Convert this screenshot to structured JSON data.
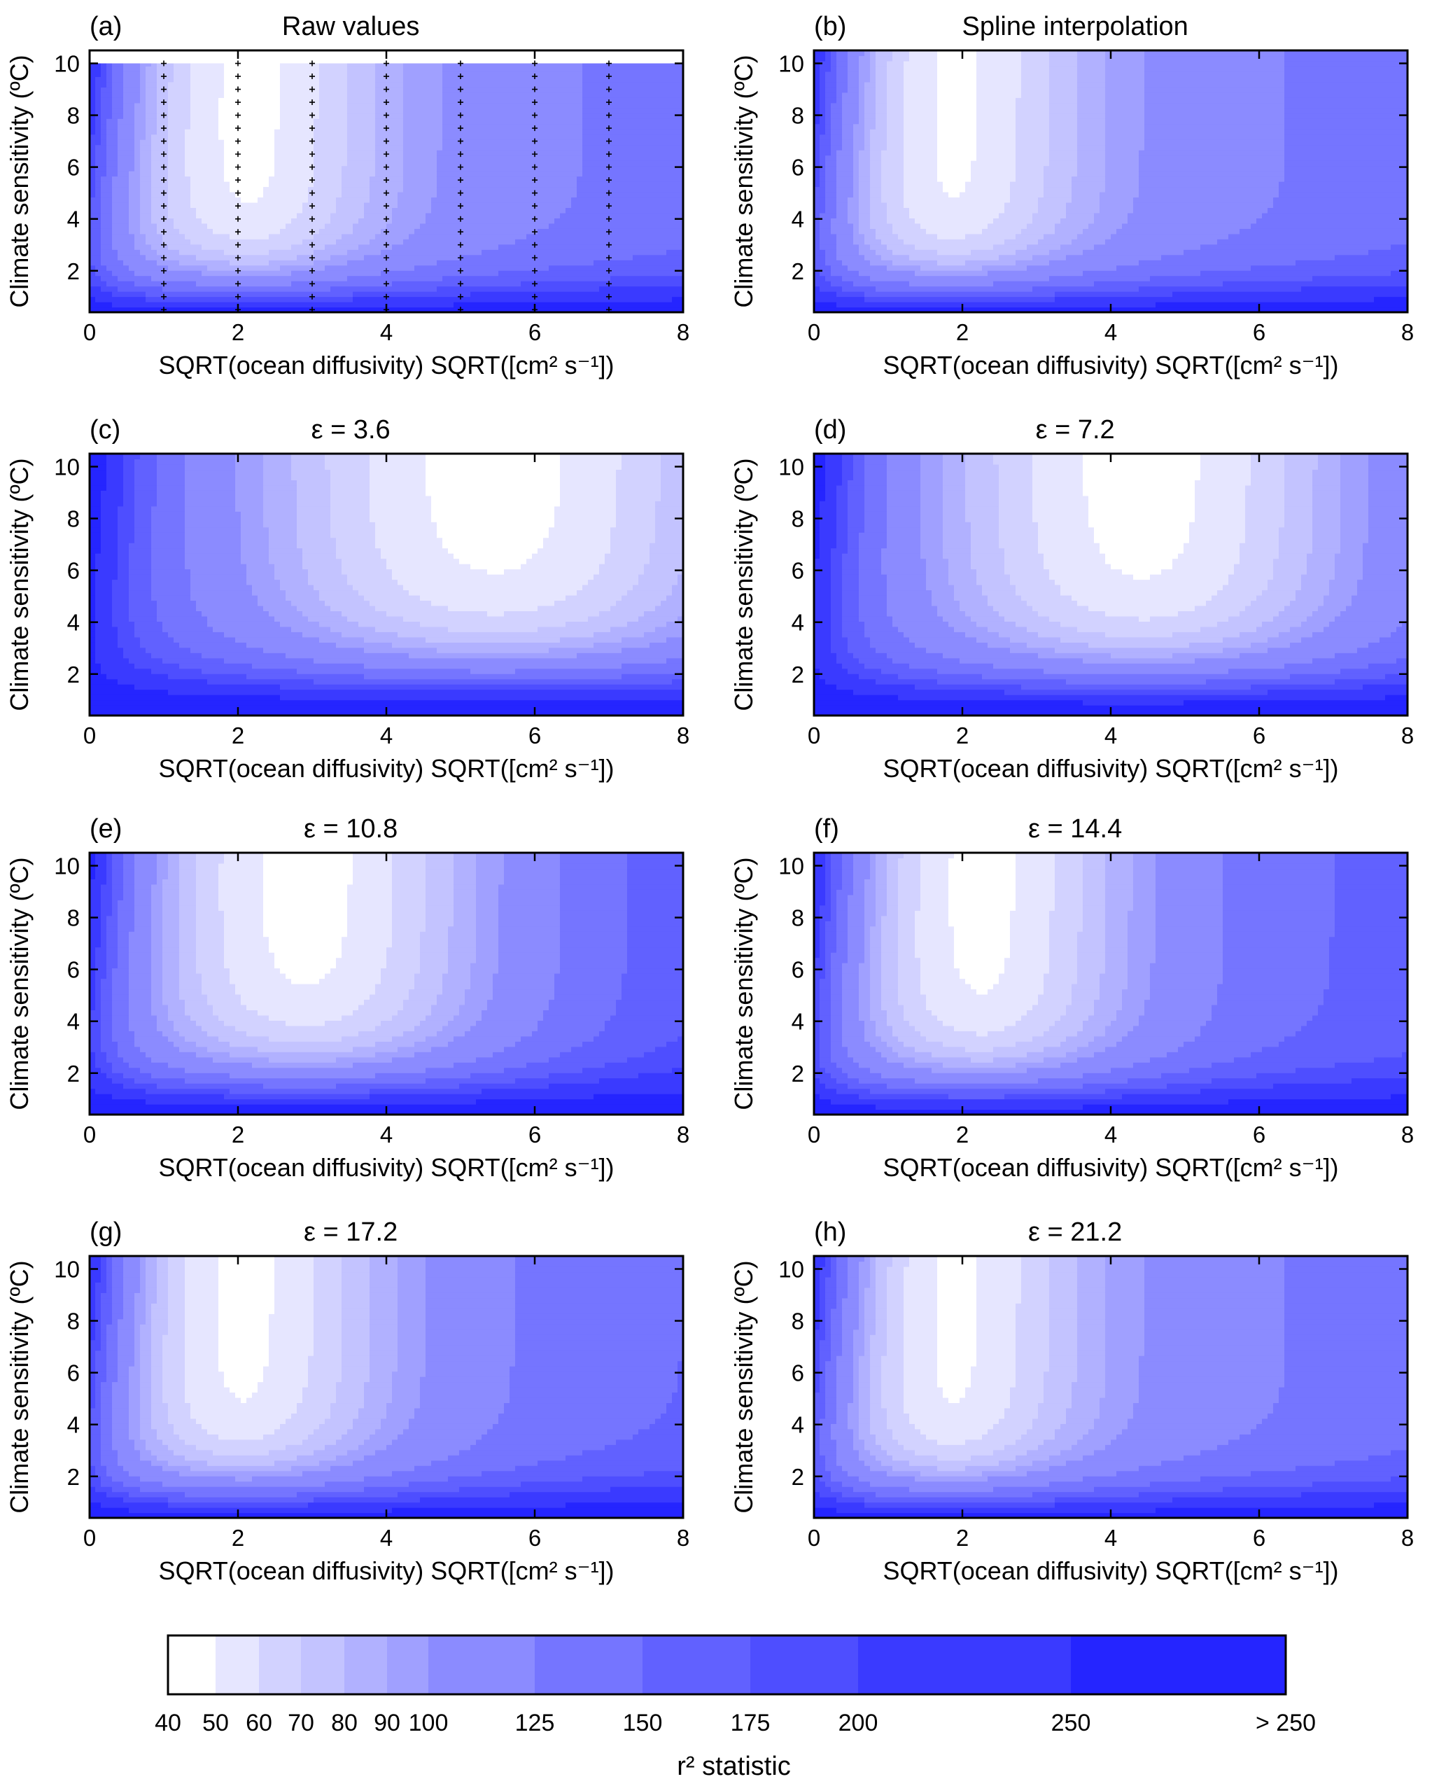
{
  "chart_data": [
    {
      "type": "heatmap",
      "panel_label": "(a)",
      "title": "Raw values",
      "xlabel": "SQRT(ocean diffusivity) SQRT([cm² s⁻¹])",
      "ylabel": "Climate sensitivity (ºC)",
      "xlim": [
        0,
        8
      ],
      "ylim": [
        0.4,
        10.5
      ],
      "xticks": [
        "0",
        "2",
        "4",
        "6",
        "8"
      ],
      "yticks": [
        "2",
        "4",
        "6",
        "8",
        "10"
      ],
      "sample_points_x": [
        1,
        2,
        3,
        4,
        5,
        6,
        7
      ],
      "optimum_x": 2.2,
      "optimum_width": 1.4,
      "optimum_y": 7.0,
      "sharpness": 1.0
    },
    {
      "type": "heatmap",
      "panel_label": "(b)",
      "title": "Spline interpolation",
      "xlabel": "SQRT(ocean diffusivity) SQRT([cm² s⁻¹])",
      "ylabel": "Climate sensitivity (ºC)",
      "xlim": [
        0,
        8
      ],
      "ylim": [
        0.4,
        10.5
      ],
      "xticks": [
        "0",
        "2",
        "4",
        "6",
        "8"
      ],
      "yticks": [
        "2",
        "4",
        "6",
        "8",
        "10"
      ],
      "optimum_x": 1.9,
      "optimum_width": 1.4,
      "optimum_y": 7.2,
      "sharpness": 1.0
    },
    {
      "type": "heatmap",
      "panel_label": "(c)",
      "title": "ε = 3.6",
      "xlabel": "SQRT(ocean diffusivity) SQRT([cm² s⁻¹])",
      "ylabel": "Climate sensitivity (ºC)",
      "xlim": [
        0,
        8
      ],
      "ylim": [
        0.4,
        10.5
      ],
      "xticks": [
        "0",
        "2",
        "4",
        "6",
        "8"
      ],
      "yticks": [
        "2",
        "4",
        "6",
        "8",
        "10"
      ],
      "optimum_x": 5.5,
      "optimum_width": 3.0,
      "optimum_y": 6.5,
      "sharpness": 0.12
    },
    {
      "type": "heatmap",
      "panel_label": "(d)",
      "title": "ε = 7.2",
      "xlabel": "SQRT(ocean diffusivity) SQRT([cm² s⁻¹])",
      "ylabel": "Climate sensitivity (ºC)",
      "xlim": [
        0,
        8
      ],
      "ylim": [
        0.4,
        10.5
      ],
      "xticks": [
        "0",
        "2",
        "4",
        "6",
        "8"
      ],
      "yticks": [
        "2",
        "4",
        "6",
        "8",
        "10"
      ],
      "optimum_x": 4.5,
      "optimum_width": 2.5,
      "optimum_y": 7.5,
      "sharpness": 0.3
    },
    {
      "type": "heatmap",
      "panel_label": "(e)",
      "title": "ε = 10.8",
      "xlabel": "SQRT(ocean diffusivity) SQRT([cm² s⁻¹])",
      "ylabel": "Climate sensitivity (ºC)",
      "xlim": [
        0,
        8
      ],
      "ylim": [
        0.4,
        10.5
      ],
      "xticks": [
        "0",
        "2",
        "4",
        "6",
        "8"
      ],
      "yticks": [
        "2",
        "4",
        "6",
        "8",
        "10"
      ],
      "optimum_x": 3.0,
      "optimum_width": 2.0,
      "optimum_y": 7.5,
      "sharpness": 0.55
    },
    {
      "type": "heatmap",
      "panel_label": "(f)",
      "title": "ε = 14.4",
      "xlabel": "SQRT(ocean diffusivity) SQRT([cm² s⁻¹])",
      "ylabel": "Climate sensitivity (ºC)",
      "xlim": [
        0,
        8
      ],
      "ylim": [
        0.4,
        10.5
      ],
      "xticks": [
        "0",
        "2",
        "4",
        "6",
        "8"
      ],
      "yticks": [
        "2",
        "4",
        "6",
        "8",
        "10"
      ],
      "optimum_x": 2.3,
      "optimum_width": 1.6,
      "optimum_y": 7.0,
      "sharpness": 0.8
    },
    {
      "type": "heatmap",
      "panel_label": "(g)",
      "title": "ε = 17.2",
      "xlabel": "SQRT(ocean diffusivity) SQRT([cm² s⁻¹])",
      "ylabel": "Climate sensitivity (ºC)",
      "xlim": [
        0,
        8
      ],
      "ylim": [
        0.4,
        10.5
      ],
      "xticks": [
        "0",
        "2",
        "4",
        "6",
        "8"
      ],
      "yticks": [
        "2",
        "4",
        "6",
        "8",
        "10"
      ],
      "optimum_x": 2.1,
      "optimum_width": 1.6,
      "optimum_y": 8.0,
      "sharpness": 0.9
    },
    {
      "type": "heatmap",
      "panel_label": "(h)",
      "title": "ε = 21.2",
      "xlabel": "SQRT(ocean diffusivity) SQRT([cm² s⁻¹])",
      "ylabel": "Climate sensitivity (ºC)",
      "xlim": [
        0,
        8
      ],
      "ylim": [
        0.4,
        10.5
      ],
      "xticks": [
        "0",
        "2",
        "4",
        "6",
        "8"
      ],
      "yticks": [
        "2",
        "4",
        "6",
        "8",
        "10"
      ],
      "optimum_x": 1.9,
      "optimum_width": 1.4,
      "optimum_y": 7.5,
      "sharpness": 1.0
    }
  ],
  "colorbar": {
    "label": "r² statistic",
    "levels": [
      40,
      50,
      60,
      70,
      80,
      90,
      100,
      125,
      150,
      175,
      200,
      250,
      300
    ],
    "tick_labels": [
      "40",
      "50",
      "60",
      "70",
      "80",
      "90",
      "100",
      "125",
      "150",
      "175",
      "200",
      "250",
      "> 250"
    ],
    "colors": [
      "#ffffff",
      "#e6e6ff",
      "#d2d2ff",
      "#c3c3ff",
      "#b1b1ff",
      "#a0a0ff",
      "#8b8bff",
      "#7575ff",
      "#6161ff",
      "#4e4eff",
      "#3a3aff",
      "#2525ff"
    ]
  }
}
